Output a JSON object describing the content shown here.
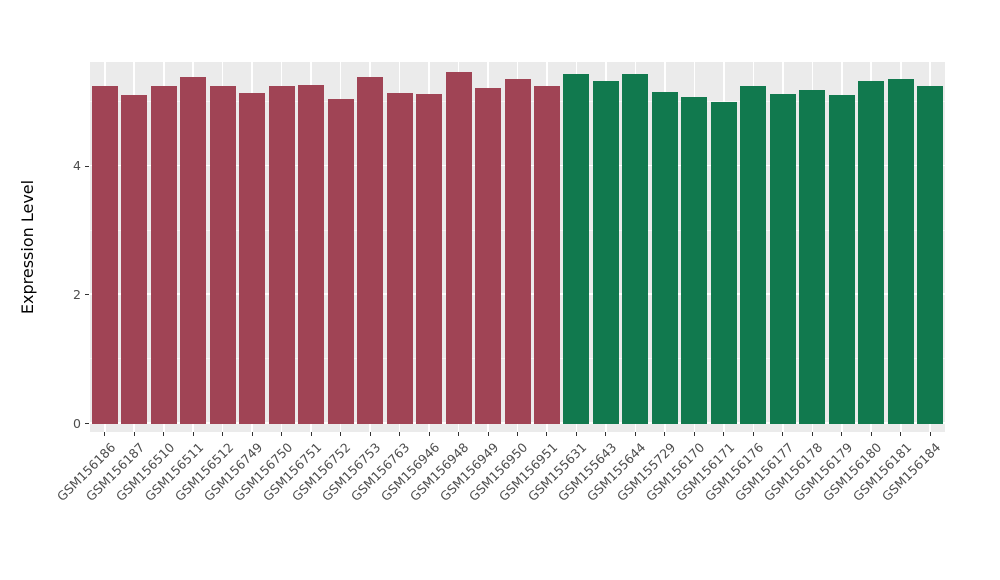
{
  "chart_data": {
    "type": "bar",
    "title": "",
    "xlabel": "",
    "ylabel": "Expression Level",
    "ylim": [
      0,
      5.75
    ],
    "yticks": [
      0,
      2,
      4
    ],
    "minor_gridlines": [
      1,
      3,
      5
    ],
    "grid": "on",
    "legend": "none",
    "panel_bg": "#EBEBEB",
    "grid_color": "#FFFFFF",
    "tick_label_color": "#4D4D4D",
    "groups": [
      {
        "name": "red-group",
        "color": "#A04455"
      },
      {
        "name": "green-group",
        "color": "#11794E"
      }
    ],
    "categories": [
      "GSM156186",
      "GSM156187",
      "GSM156510",
      "GSM156511",
      "GSM156512",
      "GSM156749",
      "GSM156750",
      "GSM156751",
      "GSM156752",
      "GSM156753",
      "GSM156763",
      "GSM156946",
      "GSM156948",
      "GSM156949",
      "GSM156950",
      "GSM156951",
      "GSM155631",
      "GSM155643",
      "GSM155644",
      "GSM155729",
      "GSM156170",
      "GSM156171",
      "GSM156176",
      "GSM156177",
      "GSM156178",
      "GSM156179",
      "GSM156180",
      "GSM156181",
      "GSM156184"
    ],
    "values": [
      5.24,
      5.11,
      5.25,
      5.38,
      5.25,
      5.14,
      5.25,
      5.27,
      5.05,
      5.39,
      5.14,
      5.13,
      5.46,
      5.22,
      5.36,
      5.24,
      5.44,
      5.32,
      5.44,
      5.16,
      5.07,
      5.0,
      5.25,
      5.13,
      5.18,
      5.11,
      5.33,
      5.36,
      5.24
    ],
    "bar_group_index": [
      0,
      0,
      0,
      0,
      0,
      0,
      0,
      0,
      0,
      0,
      0,
      0,
      0,
      0,
      0,
      0,
      1,
      1,
      1,
      1,
      1,
      1,
      1,
      1,
      1,
      1,
      1,
      1,
      1
    ]
  }
}
